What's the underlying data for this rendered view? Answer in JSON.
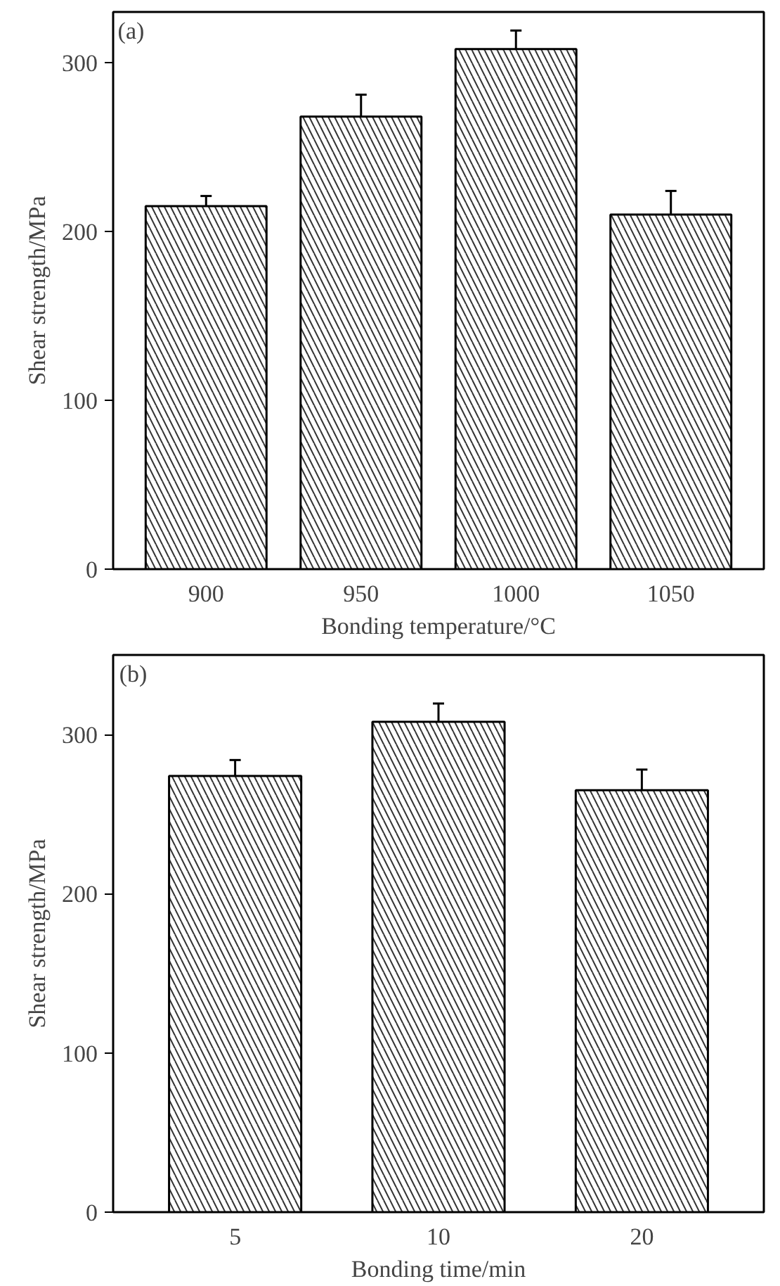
{
  "chart_data": [
    {
      "type": "bar",
      "title": "(a)",
      "xlabel": "Bonding temperature/°C",
      "ylabel": "Shear strength/MPa",
      "categories": [
        "900",
        "950",
        "1000",
        "1050"
      ],
      "values": [
        215,
        268,
        308,
        210
      ],
      "errors": [
        6,
        13,
        11,
        14
      ],
      "color": "#ffffff",
      "ylim": [
        0,
        330
      ],
      "yticks": [
        0,
        100,
        200,
        300
      ],
      "grid": false
    },
    {
      "type": "bar",
      "title": "(b)",
      "xlabel": "Bonding time/min",
      "ylabel": "Shear strength/MPa",
      "categories": [
        "5",
        "10",
        "20"
      ],
      "values": [
        274,
        308,
        265
      ],
      "errors": [
        10,
        11.5,
        13
      ],
      "color": "#ffffff",
      "ylim": [
        0,
        350
      ],
      "yticks": [
        0,
        100,
        200,
        300
      ],
      "grid": false
    }
  ]
}
